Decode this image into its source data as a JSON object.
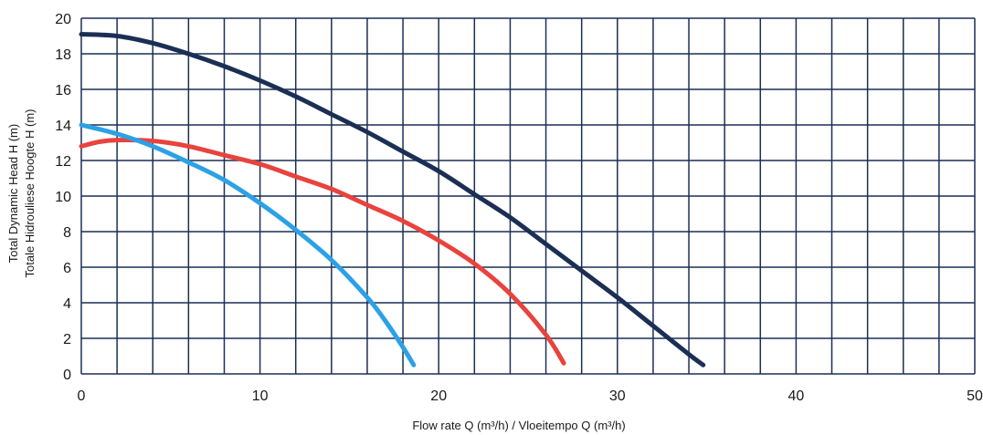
{
  "chart_data": {
    "type": "line",
    "xlabel": "Flow rate Q (m³/h) / Vloeitempo Q (m³/h)",
    "ylabel_lines": [
      "Total Dynamic Head H (m)",
      "Totale Hidrouliese Hoogte H (m)"
    ],
    "xlim": [
      0,
      50
    ],
    "ylim": [
      0,
      20
    ],
    "x_ticks": [
      "0",
      "10",
      "20",
      "30",
      "40",
      "50"
    ],
    "y_ticks": [
      "0",
      "2",
      "4",
      "6",
      "8",
      "10",
      "12",
      "14",
      "16",
      "18",
      "20"
    ],
    "grid": true,
    "series": [
      {
        "color": "#1b2f55",
        "points": [
          [
            0,
            19.1
          ],
          [
            2,
            19.0
          ],
          [
            4,
            18.6
          ],
          [
            6,
            18.0
          ],
          [
            8,
            17.3
          ],
          [
            10,
            16.5
          ],
          [
            12,
            15.6
          ],
          [
            14,
            14.6
          ],
          [
            16,
            13.6
          ],
          [
            18,
            12.5
          ],
          [
            20,
            11.4
          ],
          [
            22,
            10.1
          ],
          [
            24,
            8.8
          ],
          [
            26,
            7.3
          ],
          [
            28,
            5.8
          ],
          [
            30,
            4.3
          ],
          [
            32,
            2.7
          ],
          [
            34,
            1.1
          ],
          [
            34.8,
            0.5
          ]
        ]
      },
      {
        "color": "#e8433d",
        "points": [
          [
            0,
            12.8
          ],
          [
            1,
            13.05
          ],
          [
            2,
            13.15
          ],
          [
            4,
            13.1
          ],
          [
            6,
            12.8
          ],
          [
            8,
            12.3
          ],
          [
            10,
            11.8
          ],
          [
            12,
            11.1
          ],
          [
            14,
            10.4
          ],
          [
            16,
            9.5
          ],
          [
            18,
            8.6
          ],
          [
            20,
            7.5
          ],
          [
            22,
            6.2
          ],
          [
            24,
            4.5
          ],
          [
            26,
            2.2
          ],
          [
            27,
            0.6
          ]
        ]
      },
      {
        "color": "#2ca1e6",
        "points": [
          [
            0,
            14.0
          ],
          [
            2,
            13.5
          ],
          [
            4,
            12.8
          ],
          [
            6,
            11.9
          ],
          [
            8,
            10.9
          ],
          [
            10,
            9.6
          ],
          [
            12,
            8.1
          ],
          [
            14,
            6.4
          ],
          [
            16,
            4.3
          ],
          [
            17,
            3.0
          ],
          [
            18,
            1.5
          ],
          [
            18.6,
            0.5
          ]
        ]
      }
    ]
  }
}
